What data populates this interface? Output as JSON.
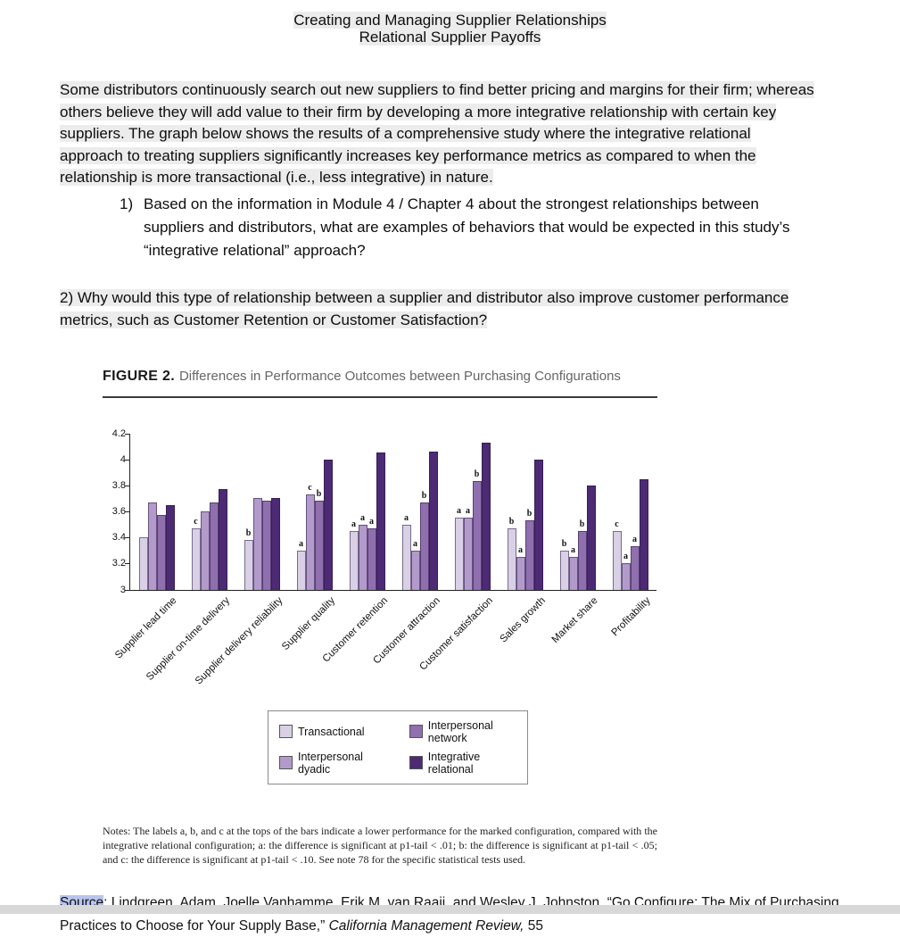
{
  "doc": {
    "title_line1": "Creating and Managing Supplier Relationships",
    "title_line2": "Relational Supplier Payoffs",
    "intro": "Some distributors continuously search out new suppliers to find better pricing and margins for their firm; whereas others believe they will add value to their firm by developing a more integrative relationship with certain key suppliers. The graph below shows the results of a comprehensive study where the integrative relational approach to treating suppliers significantly increases key performance metrics as compared to when the relationship is more transactional (i.e., less integrative) in nature.",
    "q1_marker": "1)",
    "q1_text": "Based on the information in Module 4 / Chapter 4 about the strongest relationships between suppliers and distributors, what are examples of behaviors that would be expected in this study’s “integrative relational” approach?",
    "q2_text": "2) Why would this type of relationship between a supplier and distributor also improve customer performance metrics, such as Customer Retention or Customer Satisfaction?"
  },
  "figure": {
    "label": "FIGURE 2.",
    "caption": "Differences in Performance Outcomes between Purchasing Configurations",
    "notes": "Notes: The labels a, b, and c at the tops of the bars indicate a lower performance for the marked configuration, compared with the integrative relational configuration; a: the difference is significant at p1-tail < .01; b: the difference is significant at p1-tail < .05; and c: the difference is significant at p1-tail < .10. See note 78 for the specific statistical tests used.",
    "source_label": "Source",
    "source_text": ": Lindgreen, Adam, Joelle Vanhamme, Erik M. van Raaij, and Wesley J. Johnston, “Go Configure: The Mix of Purchasing Practices to Choose for Your Supply Base,” ",
    "source_journal": "California Management Review,",
    "source_issue": " 55"
  },
  "chart_data": {
    "type": "bar",
    "title": "Differences in Performance Outcomes between Purchasing Configurations",
    "categories": [
      "Supplier lead time",
      "Supplier on-time delivery",
      "Supplier delivery reliability",
      "Supplier quality",
      "Customer retention",
      "Customer attraction",
      "Customer satisfaction",
      "Sales growth",
      "Market share",
      "Profitability"
    ],
    "series": [
      {
        "name": "Transactional",
        "color": "#d9d0e6",
        "values": [
          3.4,
          3.47,
          3.38,
          3.3,
          3.45,
          3.5,
          3.55,
          3.47,
          3.3,
          3.45
        ]
      },
      {
        "name": "Interpersonal dyadic",
        "color": "#b29aca",
        "values": [
          3.67,
          3.6,
          3.7,
          3.73,
          3.5,
          3.3,
          3.55,
          3.25,
          3.25,
          3.2
        ]
      },
      {
        "name": "Interpersonal network",
        "color": "#8f6fae",
        "values": [
          3.57,
          3.67,
          3.68,
          3.68,
          3.47,
          3.67,
          3.83,
          3.53,
          3.45,
          3.33
        ]
      },
      {
        "name": "Integrative relational",
        "color": "#4c2a74",
        "values": [
          3.65,
          3.77,
          3.7,
          4.0,
          4.05,
          4.06,
          4.13,
          4.0,
          3.8,
          3.85
        ]
      }
    ],
    "bar_labels": [
      [
        "",
        "",
        "",
        ""
      ],
      [
        "c",
        "",
        "",
        ""
      ],
      [
        "b",
        "",
        "",
        ""
      ],
      [
        "a",
        "c",
        "b",
        ""
      ],
      [
        "a",
        "a",
        "a",
        ""
      ],
      [
        "a",
        "a",
        "b",
        ""
      ],
      [
        "a",
        "a",
        "b",
        ""
      ],
      [
        "b",
        "a",
        "b",
        ""
      ],
      [
        "b",
        "a",
        "b",
        ""
      ],
      [
        "c",
        "a",
        "a",
        ""
      ]
    ],
    "ylim": [
      3,
      4.2
    ],
    "yticks": [
      3,
      3.2,
      3.4,
      3.6,
      3.8,
      4,
      4.2
    ],
    "grid": false,
    "legend_position": "bottom-center"
  }
}
